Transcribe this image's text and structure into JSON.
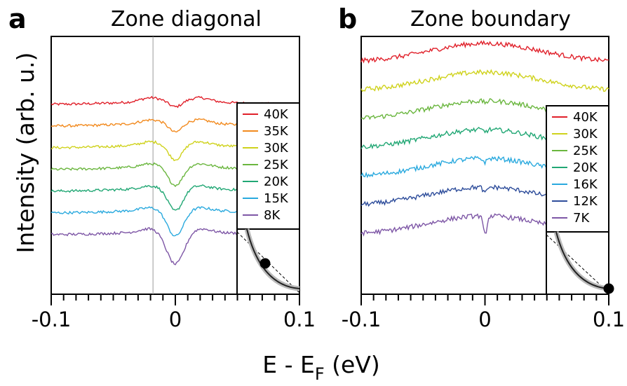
{
  "axis": {
    "ylabel": "Intensity (arb. u.)",
    "xlabel_main": "E - E",
    "xlabel_sub": "F",
    "xlabel_unit": " (eV)"
  },
  "chart_data": [
    {
      "panel": "a",
      "type": "line",
      "title": "Zone diagonal",
      "xlabel": "E - E_F (eV)",
      "ylabel": "Intensity (arb. u.)",
      "xlim": [
        -0.1,
        0.1
      ],
      "xticks": [
        "-0.1",
        "0",
        "0.1"
      ],
      "legend_position": "right",
      "reference_line_x": -0.018,
      "inset": "Fermi surface sketch with marker on the zone diagonal",
      "series": [
        {
          "name": "40K",
          "color": "#e0202a",
          "offset": 6,
          "gap_depth": 0.28,
          "gap_width": 0.005,
          "peak_height": 0.18
        },
        {
          "name": "35K",
          "color": "#f28a1e",
          "offset": 5,
          "gap_depth": 0.45,
          "gap_width": 0.005,
          "peak_height": 0.16
        },
        {
          "name": "30K",
          "color": "#cfd21c",
          "offset": 4,
          "gap_depth": 0.72,
          "gap_width": 0.0055,
          "peak_height": 0.15
        },
        {
          "name": "25K",
          "color": "#6ab63e",
          "offset": 3,
          "gap_depth": 0.9,
          "gap_width": 0.006,
          "peak_height": 0.14
        },
        {
          "name": "20K",
          "color": "#21a774",
          "offset": 2,
          "gap_depth": 1.08,
          "gap_width": 0.006,
          "peak_height": 0.12
        },
        {
          "name": "15K",
          "color": "#29a9de",
          "offset": 1,
          "gap_depth": 1.25,
          "gap_width": 0.0065,
          "peak_height": 0.12
        },
        {
          "name": "8K",
          "color": "#7e57a6",
          "offset": 0,
          "gap_depth": 1.55,
          "gap_width": 0.007,
          "peak_height": 0.16
        }
      ]
    },
    {
      "panel": "b",
      "type": "line",
      "title": "Zone boundary",
      "xlabel": "E - E_F (eV)",
      "ylabel": "Intensity (arb. u.)",
      "xlim": [
        -0.1,
        0.1
      ],
      "xticks": [
        "-0.1",
        "0",
        "0.1"
      ],
      "legend_position": "right",
      "inset": "Fermi surface sketch with marker at the zone boundary",
      "series": [
        {
          "name": "40K",
          "color": "#e0202a",
          "offset": 6,
          "dip": 0.0
        },
        {
          "name": "30K",
          "color": "#cfd21c",
          "offset": 5,
          "dip": 0.05
        },
        {
          "name": "25K",
          "color": "#6ab63e",
          "offset": 4,
          "dip": 0.08
        },
        {
          "name": "20K",
          "color": "#21a774",
          "offset": 3,
          "dip": 0.1
        },
        {
          "name": "16K",
          "color": "#29a9de",
          "offset": 2,
          "dip": 0.18
        },
        {
          "name": "12K",
          "color": "#2e4d9b",
          "offset": 1,
          "dip": 0.3
        },
        {
          "name": "7K",
          "color": "#7e57a6",
          "offset": 0,
          "dip": 0.9
        }
      ]
    }
  ]
}
